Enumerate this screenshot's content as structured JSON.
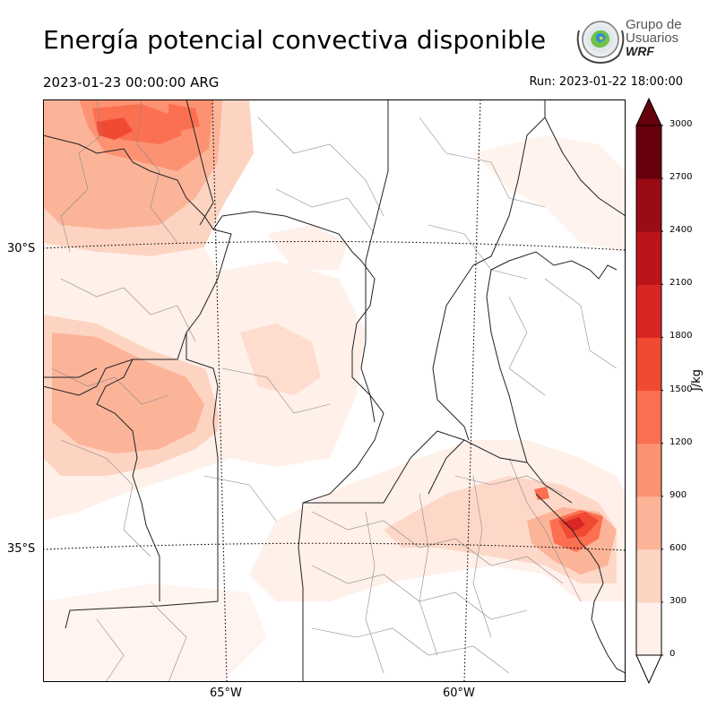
{
  "title": "Energía potencial convectiva disponible",
  "valid_time": "2023-01-23 00:00:00 ARG",
  "run_time": "Run: 2023-01-22 18:00:00",
  "logo": {
    "line1": "Grupo de",
    "line2": "Usuarios",
    "line3": "WRF"
  },
  "latitude_labels": [
    "30°S",
    "35°S"
  ],
  "longitude_labels": [
    "65°W",
    "60°W"
  ],
  "colorbar": {
    "unit": "J/kg",
    "ticks": [
      "0",
      "300",
      "600",
      "900",
      "1200",
      "1500",
      "1800",
      "2100",
      "2400",
      "2700",
      "3000"
    ],
    "colors": [
      "#fff0e9",
      "#fdd4c2",
      "#fcb499",
      "#fc9272",
      "#fb7050",
      "#f14a33",
      "#d92523",
      "#bb1419",
      "#9a0b13",
      "#67000d"
    ],
    "extend": "both",
    "under_color": "#ffffff",
    "over_color": "#67000d"
  }
}
